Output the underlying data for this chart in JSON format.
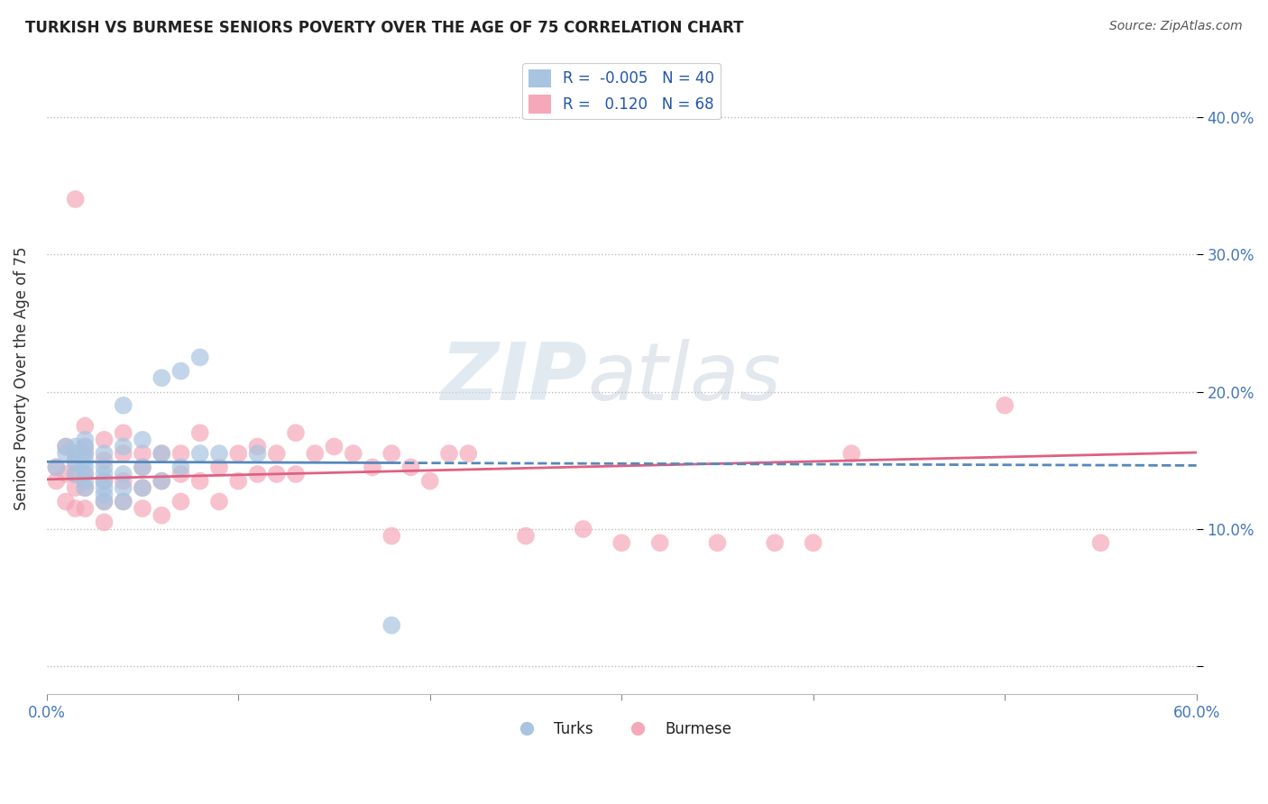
{
  "title": "TURKISH VS BURMESE SENIORS POVERTY OVER THE AGE OF 75 CORRELATION CHART",
  "source": "Source: ZipAtlas.com",
  "ylabel": "Seniors Poverty Over the Age of 75",
  "xlabel": "",
  "xlim": [
    0.0,
    0.6
  ],
  "ylim": [
    -0.02,
    0.44
  ],
  "yticks": [
    0.0,
    0.1,
    0.2,
    0.3,
    0.4
  ],
  "ytick_labels_right": [
    "",
    "10.0%",
    "20.0%",
    "30.0%",
    "40.0%"
  ],
  "xticks": [
    0.0,
    0.1,
    0.2,
    0.3,
    0.4,
    0.5,
    0.6
  ],
  "xtick_labels": [
    "0.0%",
    "",
    "",
    "",
    "",
    "",
    "60.0%"
  ],
  "turks_R": -0.005,
  "turks_N": 40,
  "burmese_R": 0.12,
  "burmese_N": 68,
  "turks_color": "#a8c4e0",
  "burmese_color": "#f4a8b8",
  "turks_line_color": "#5588bb",
  "burmese_line_color": "#e06080",
  "legend_label_turks": "Turks",
  "legend_label_burmese": "Burmese",
  "turks_x": [
    0.005,
    0.01,
    0.01,
    0.015,
    0.015,
    0.015,
    0.015,
    0.02,
    0.02,
    0.02,
    0.02,
    0.02,
    0.02,
    0.02,
    0.02,
    0.03,
    0.03,
    0.03,
    0.03,
    0.03,
    0.03,
    0.03,
    0.04,
    0.04,
    0.04,
    0.04,
    0.04,
    0.05,
    0.05,
    0.05,
    0.06,
    0.06,
    0.06,
    0.07,
    0.07,
    0.08,
    0.08,
    0.09,
    0.11,
    0.18
  ],
  "turks_y": [
    0.145,
    0.155,
    0.16,
    0.14,
    0.148,
    0.155,
    0.16,
    0.13,
    0.135,
    0.14,
    0.145,
    0.15,
    0.155,
    0.16,
    0.165,
    0.12,
    0.125,
    0.13,
    0.135,
    0.14,
    0.145,
    0.155,
    0.12,
    0.13,
    0.14,
    0.16,
    0.19,
    0.13,
    0.145,
    0.165,
    0.135,
    0.155,
    0.21,
    0.145,
    0.215,
    0.155,
    0.225,
    0.155,
    0.155,
    0.03
  ],
  "burmese_x": [
    0.005,
    0.005,
    0.01,
    0.01,
    0.01,
    0.015,
    0.015,
    0.015,
    0.015,
    0.015,
    0.015,
    0.02,
    0.02,
    0.02,
    0.02,
    0.02,
    0.02,
    0.03,
    0.03,
    0.03,
    0.03,
    0.03,
    0.04,
    0.04,
    0.04,
    0.04,
    0.05,
    0.05,
    0.05,
    0.05,
    0.06,
    0.06,
    0.06,
    0.07,
    0.07,
    0.07,
    0.08,
    0.08,
    0.09,
    0.09,
    0.1,
    0.1,
    0.11,
    0.11,
    0.12,
    0.12,
    0.13,
    0.13,
    0.14,
    0.15,
    0.16,
    0.17,
    0.18,
    0.18,
    0.19,
    0.2,
    0.21,
    0.22,
    0.25,
    0.28,
    0.3,
    0.32,
    0.35,
    0.38,
    0.4,
    0.42,
    0.5,
    0.55
  ],
  "burmese_y": [
    0.135,
    0.145,
    0.12,
    0.14,
    0.16,
    0.115,
    0.13,
    0.14,
    0.15,
    0.155,
    0.34,
    0.115,
    0.13,
    0.14,
    0.155,
    0.16,
    0.175,
    0.105,
    0.12,
    0.135,
    0.15,
    0.165,
    0.12,
    0.135,
    0.155,
    0.17,
    0.115,
    0.13,
    0.145,
    0.155,
    0.11,
    0.135,
    0.155,
    0.12,
    0.14,
    0.155,
    0.135,
    0.17,
    0.12,
    0.145,
    0.135,
    0.155,
    0.14,
    0.16,
    0.14,
    0.155,
    0.14,
    0.17,
    0.155,
    0.16,
    0.155,
    0.145,
    0.095,
    0.155,
    0.145,
    0.135,
    0.155,
    0.155,
    0.095,
    0.1,
    0.09,
    0.09,
    0.09,
    0.09,
    0.09,
    0.155,
    0.19,
    0.09
  ],
  "watermark": "ZIPatlas",
  "background_color": "#ffffff",
  "grid_color": "#cccccc"
}
